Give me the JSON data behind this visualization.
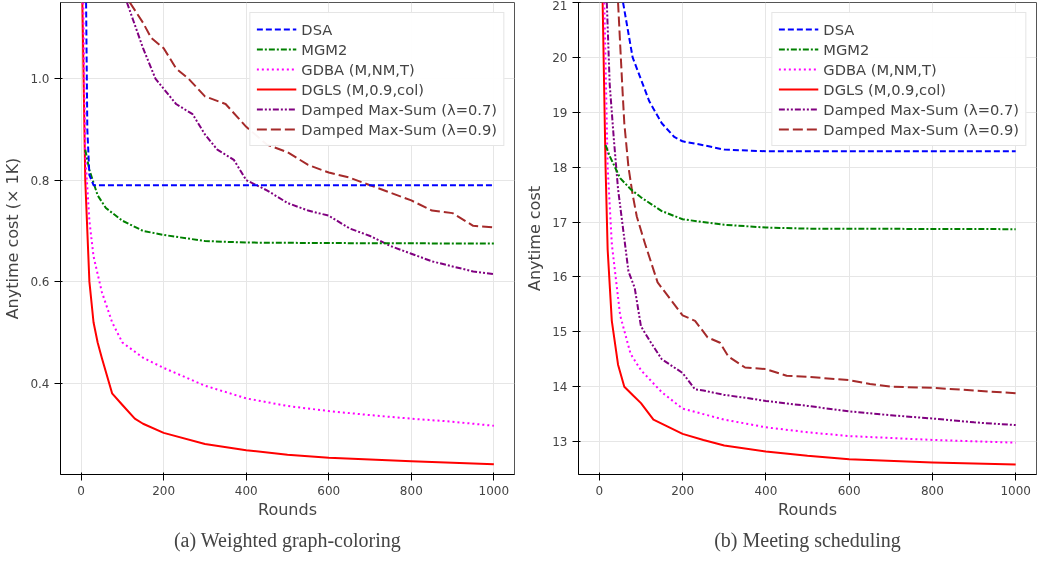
{
  "chart_data": [
    {
      "type": "line",
      "xlabel": "Rounds",
      "ylabel": "Anytime cost (× 1K)",
      "annotations": [
        "(a) Weighted graph-coloring"
      ],
      "xlim": [
        -50,
        1050
      ],
      "ylim": [
        0.22,
        1.15
      ],
      "xticks": [
        0,
        200,
        400,
        600,
        800,
        1000
      ],
      "yticks": [
        0.4,
        0.6,
        0.8,
        {
          "value": 1.0,
          "label": "1.0"
        }
      ],
      "grid": true,
      "legend": "top right",
      "marker": "none",
      "series": [
        {
          "name": "DSA",
          "color": "#0000ff",
          "line_style": "dashed",
          "x": [
            12,
            15,
            20,
            30,
            1000
          ],
          "values": [
            1.15,
            0.9,
            0.81,
            0.79,
            0.79
          ]
        },
        {
          "name": "MGM2",
          "color": "#008000",
          "line_style": "dashdot",
          "x": [
            10,
            20,
            40,
            60,
            100,
            150,
            200,
            300,
            400,
            600,
            1000
          ],
          "values": [
            0.86,
            0.82,
            0.77,
            0.745,
            0.72,
            0.7,
            0.692,
            0.68,
            0.677,
            0.676,
            0.675
          ]
        },
        {
          "name": "GDBA (M,NM,T)",
          "color": "#ff00ff",
          "line_style": "dotted",
          "x": [
            5,
            10,
            20,
            30,
            50,
            75,
            100,
            150,
            200,
            300,
            400,
            500,
            600,
            700,
            800,
            900,
            1000
          ],
          "values": [
            1.15,
            0.85,
            0.72,
            0.65,
            0.58,
            0.52,
            0.48,
            0.45,
            0.43,
            0.395,
            0.37,
            0.355,
            0.345,
            0.337,
            0.33,
            0.324,
            0.316
          ]
        },
        {
          "name": "DGLS (M,0.9,col)",
          "color": "#ff0000",
          "line_style": "solid",
          "x": [
            3,
            10,
            20,
            30,
            40,
            50,
            75,
            100,
            130,
            150,
            200,
            300,
            400,
            500,
            600,
            800,
            1000
          ],
          "values": [
            1.15,
            0.8,
            0.6,
            0.52,
            0.48,
            0.45,
            0.38,
            0.357,
            0.33,
            0.32,
            0.302,
            0.28,
            0.268,
            0.259,
            0.253,
            0.246,
            0.24
          ]
        },
        {
          "name": "Damped Max-Sum (λ=0.7)",
          "color": "#800080",
          "line_style": "dashdotdot",
          "x": [
            111,
            150,
            180,
            200,
            230,
            270,
            300,
            330,
            370,
            400,
            450,
            500,
            550,
            600,
            650,
            700,
            750,
            800,
            850,
            900,
            950,
            1000
          ],
          "values": [
            1.15,
            1.06,
            1.0,
            0.98,
            0.95,
            0.93,
            0.89,
            0.86,
            0.84,
            0.8,
            0.78,
            0.755,
            0.74,
            0.73,
            0.705,
            0.69,
            0.67,
            0.655,
            0.64,
            0.63,
            0.62,
            0.615
          ]
        },
        {
          "name": "Damped Max-Sum (λ=0.9)",
          "color": "#a52a2a",
          "line_style": "longdash",
          "x": [
            118,
            150,
            170,
            200,
            230,
            260,
            300,
            350,
            400,
            450,
            500,
            550,
            600,
            650,
            700,
            750,
            800,
            850,
            900,
            950,
            1000
          ],
          "values": [
            1.15,
            1.11,
            1.08,
            1.06,
            1.02,
            1.0,
            0.965,
            0.95,
            0.905,
            0.87,
            0.855,
            0.83,
            0.815,
            0.805,
            0.79,
            0.775,
            0.76,
            0.74,
            0.735,
            0.71,
            0.707
          ]
        }
      ]
    },
    {
      "type": "line",
      "xlabel": "Rounds",
      "ylabel": "Anytime cost",
      "annotations": [
        "(b) Meeting scheduling"
      ],
      "xlim": [
        -50,
        1050
      ],
      "ylim": [
        12.4,
        21
      ],
      "xticks": [
        0,
        200,
        400,
        600,
        800,
        1000
      ],
      "yticks": [
        13,
        14,
        15,
        16,
        17,
        18,
        19,
        20,
        21
      ],
      "grid": true,
      "legend": "top right",
      "marker": "none",
      "series": [
        {
          "name": "DSA",
          "color": "#0000ff",
          "line_style": "dashed",
          "x": [
            57,
            80,
            100,
            120,
            150,
            180,
            200,
            250,
            300,
            400,
            1000
          ],
          "values": [
            21,
            20,
            19.6,
            19.2,
            18.8,
            18.55,
            18.47,
            18.4,
            18.32,
            18.29,
            18.29
          ]
        },
        {
          "name": "MGM2",
          "color": "#008000",
          "line_style": "dashdot",
          "x": [
            15,
            25,
            50,
            75,
            100,
            150,
            200,
            300,
            400,
            500,
            1000
          ],
          "values": [
            18.4,
            18.2,
            17.8,
            17.6,
            17.45,
            17.2,
            17.05,
            16.95,
            16.9,
            16.88,
            16.87
          ]
        },
        {
          "name": "GDBA (M,NM,T)",
          "color": "#ff00ff",
          "line_style": "dotted",
          "x": [
            12,
            20,
            30,
            50,
            75,
            100,
            150,
            200,
            300,
            400,
            500,
            600,
            800,
            1000
          ],
          "values": [
            21,
            18,
            16.6,
            15.3,
            14.6,
            14.3,
            13.9,
            13.6,
            13.4,
            13.26,
            13.17,
            13.1,
            13.03,
            12.98
          ]
        },
        {
          "name": "DGLS (M,0.9,col)",
          "color": "#ff0000",
          "line_style": "solid",
          "x": [
            8,
            15,
            20,
            30,
            45,
            60,
            80,
            100,
            130,
            200,
            250,
            300,
            400,
            500,
            600,
            800,
            1000
          ],
          "values": [
            21,
            18,
            16.5,
            15.2,
            14.4,
            14.0,
            13.85,
            13.7,
            13.4,
            13.14,
            13.03,
            12.93,
            12.82,
            12.74,
            12.68,
            12.62,
            12.58
          ]
        },
        {
          "name": "Damped Max-Sum (λ=0.7)",
          "color": "#800080",
          "line_style": "dashdotdot",
          "x": [
            18,
            25,
            35,
            45,
            55,
            70,
            85,
            100,
            120,
            150,
            180,
            200,
            230,
            250,
            300,
            350,
            400,
            500,
            600,
            700,
            800,
            900,
            1000
          ],
          "values": [
            21,
            19.5,
            18.5,
            17.6,
            17.0,
            16.1,
            15.8,
            15.1,
            14.85,
            14.5,
            14.35,
            14.25,
            13.95,
            13.93,
            13.85,
            13.8,
            13.74,
            13.65,
            13.55,
            13.48,
            13.42,
            13.35,
            13.3
          ]
        },
        {
          "name": "Damped Max-Sum (λ=0.9)",
          "color": "#a52a2a",
          "line_style": "longdash",
          "x": [
            45,
            55,
            60,
            70,
            80,
            90,
            110,
            140,
            170,
            200,
            230,
            260,
            290,
            310,
            350,
            400,
            450,
            500,
            600,
            650,
            700,
            800,
            900,
            1000
          ],
          "values": [
            21,
            19.5,
            18.8,
            18.0,
            17.5,
            17.1,
            16.6,
            15.9,
            15.6,
            15.3,
            15.2,
            14.9,
            14.8,
            14.55,
            14.35,
            14.32,
            14.2,
            14.18,
            14.12,
            14.05,
            14.0,
            13.98,
            13.93,
            13.88
          ]
        }
      ]
    }
  ]
}
